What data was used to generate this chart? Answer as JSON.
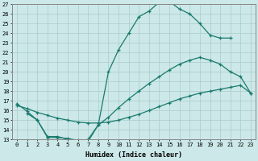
{
  "xlabel": "Humidex (Indice chaleur)",
  "bg_color": "#cce8e8",
  "grid_color": "#aacccc",
  "line_color": "#1a7a6e",
  "line1_x": [
    0,
    1,
    2,
    3,
    4,
    5,
    6,
    7,
    8,
    9,
    10,
    11,
    12,
    13,
    14,
    15,
    16,
    17,
    18,
    19,
    20,
    21
  ],
  "line1_y": [
    16.7,
    15.9,
    15.0,
    13.3,
    13.3,
    13.0,
    12.8,
    13.0,
    14.5,
    20.0,
    22.3,
    24.0,
    25.7,
    26.3,
    27.2,
    27.3,
    26.5,
    26.0,
    25.0,
    23.8,
    23.5,
    23.5
  ],
  "line2_x": [
    0,
    1,
    2,
    3,
    4,
    5,
    6,
    7,
    8,
    9,
    10,
    11,
    12,
    13,
    14,
    15,
    16,
    17,
    18,
    19,
    20,
    21,
    22,
    23
  ],
  "line2_y": [
    16.5,
    16.2,
    15.8,
    15.5,
    15.2,
    15.0,
    14.8,
    14.7,
    14.7,
    14.8,
    15.0,
    15.3,
    15.6,
    16.0,
    16.4,
    16.8,
    17.2,
    17.5,
    17.8,
    18.0,
    18.2,
    18.4,
    18.6,
    17.8
  ],
  "line3_x": [
    1,
    2,
    3,
    4,
    5,
    6,
    7,
    8,
    9,
    10,
    11,
    12,
    13,
    14,
    15,
    16,
    17,
    18,
    19,
    20,
    21,
    22,
    23
  ],
  "line3_y": [
    15.7,
    15.0,
    13.2,
    13.2,
    13.1,
    12.9,
    12.8,
    14.5,
    15.3,
    16.3,
    17.2,
    18.0,
    18.8,
    19.5,
    20.2,
    20.8,
    21.2,
    21.5,
    21.2,
    20.8,
    20.0,
    19.5,
    17.8
  ],
  "ylim": [
    13,
    27
  ],
  "xlim": [
    -0.5,
    23.5
  ],
  "yticks": [
    13,
    14,
    15,
    16,
    17,
    18,
    19,
    20,
    21,
    22,
    23,
    24,
    25,
    26,
    27
  ],
  "xticks": [
    0,
    1,
    2,
    3,
    4,
    5,
    6,
    7,
    8,
    9,
    10,
    11,
    12,
    13,
    14,
    15,
    16,
    17,
    18,
    19,
    20,
    21,
    22,
    23
  ],
  "xtick_labels": [
    "0",
    "1",
    "2",
    "3",
    "4",
    "5",
    "6",
    "7",
    "8",
    "9",
    "10",
    "11",
    "12",
    "13",
    "14",
    "15",
    "16",
    "17",
    "18",
    "19",
    "20",
    "21",
    "22",
    "23"
  ]
}
